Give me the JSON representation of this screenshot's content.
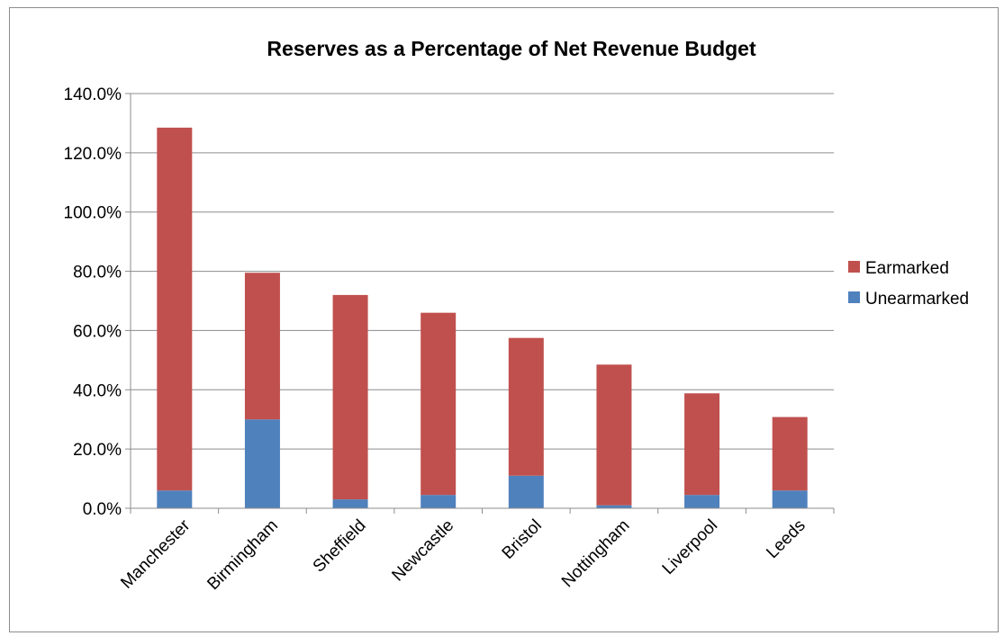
{
  "chart_data": {
    "type": "bar",
    "stacked": true,
    "title": "Reserves as a Percentage of Net Revenue Budget",
    "xlabel": "",
    "ylabel": "",
    "categories": [
      "Manchester",
      "Birmingham",
      "Sheffield",
      "Newcastle",
      "Bristol",
      "Nottingham",
      "Liverpool",
      "Leeds"
    ],
    "series": [
      {
        "name": "Unearmarked",
        "color": "#4f81bd",
        "values": [
          6.0,
          30.0,
          3.0,
          4.5,
          11.0,
          1.0,
          4.5,
          6.0
        ]
      },
      {
        "name": "Earmarked",
        "color": "#c0504d",
        "values": [
          122.5,
          49.5,
          69.0,
          61.5,
          46.5,
          47.5,
          34.3,
          24.8
        ]
      }
    ],
    "ylim": [
      0,
      140
    ],
    "yticks": [
      "0.0%",
      "20.0%",
      "40.0%",
      "60.0%",
      "80.0%",
      "100.0%",
      "120.0%",
      "140.0%"
    ],
    "grid": true,
    "legend_position": "right",
    "legend_order": [
      "Earmarked",
      "Unearmarked"
    ]
  }
}
